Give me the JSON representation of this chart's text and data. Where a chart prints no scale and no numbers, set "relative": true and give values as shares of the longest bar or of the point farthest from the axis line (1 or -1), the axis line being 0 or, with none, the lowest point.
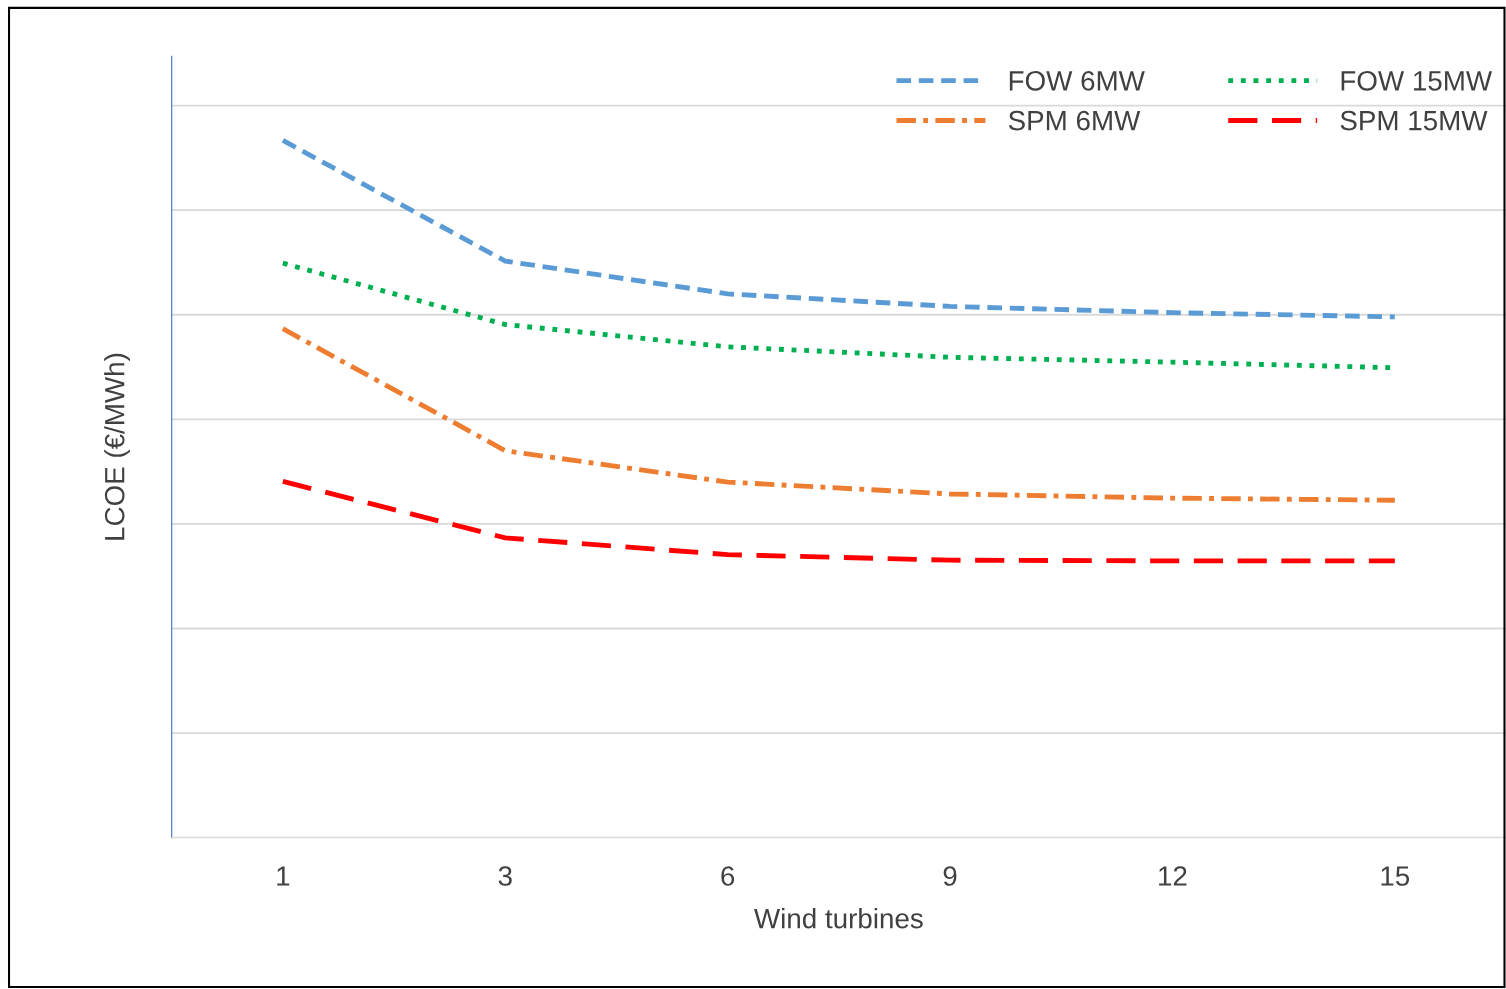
{
  "chart_data": {
    "type": "line",
    "relative": true,
    "xlabel": "Wind turbines",
    "ylabel": "LCOE (€/MWh)",
    "categories": [
      "1",
      "3",
      "6",
      "9",
      "12",
      "15"
    ],
    "grid": "y",
    "legend": "top right",
    "tick_labels": "x",
    "series": [
      {
        "name": "FOW 6MW",
        "color": "#5b9bd5",
        "line_style": "dashed",
        "values": [
          1,
          0.827,
          0.78,
          0.762,
          0.753,
          0.747
        ]
      },
      {
        "name": "FOW 15MW",
        "color": "#00b050",
        "line_style": "dotted",
        "values": [
          0.824,
          0.736,
          0.704,
          0.689,
          0.682,
          0.674
        ]
      },
      {
        "name": "SPM 6MW",
        "color": "#ed7d31",
        "line_style": "dashdot",
        "values": [
          0.73,
          0.555,
          0.51,
          0.493,
          0.487,
          0.484
        ]
      },
      {
        "name": "SPM 15MW",
        "color": "#ff0000",
        "line_style": "longdash",
        "values": [
          0.511,
          0.43,
          0.406,
          0.398,
          0.397,
          0.397
        ]
      }
    ]
  }
}
